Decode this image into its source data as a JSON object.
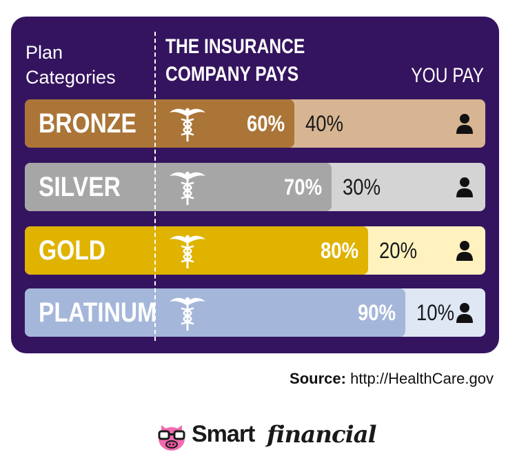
{
  "header": {
    "plan_line1": "Plan",
    "plan_line2": "Categories",
    "insurance_line1": "THE INSURANCE",
    "insurance_line2": "COMPANY PAYS",
    "you_pay": "YOU PAY"
  },
  "chart_data": {
    "type": "bar",
    "stacked": true,
    "orientation": "horizontal",
    "categories": [
      "BRONZE",
      "SILVER",
      "GOLD",
      "PLATINUM"
    ],
    "series": [
      {
        "name": "THE INSURANCE COMPANY PAYS",
        "values": [
          60,
          70,
          80,
          90
        ],
        "labels": [
          "60%",
          "70%",
          "80%",
          "90%"
        ]
      },
      {
        "name": "YOU PAY",
        "values": [
          40,
          30,
          20,
          10
        ],
        "labels": [
          "40%",
          "30%",
          "20%",
          "10%"
        ]
      }
    ],
    "unit": "%",
    "xlim": [
      0,
      100
    ],
    "colors": {
      "BRONZE": {
        "insurance": "#ab7537",
        "you": "#d7b593"
      },
      "SILVER": {
        "insurance": "#a6a6a6",
        "you": "#d4d4d4"
      },
      "GOLD": {
        "insurance": "#dfb300",
        "you": "#fff2bf"
      },
      "PLATINUM": {
        "insurance": "#a4b6d9",
        "you": "#dfe6f4"
      }
    },
    "icons": {
      "insurance": "caduceus-icon",
      "you": "person-icon"
    },
    "panel_color": "#34145f"
  },
  "source": {
    "label": "Source:",
    "text": "http://HealthCare.gov"
  },
  "logo": {
    "part1": "Smart",
    "part2": "financial",
    "icon": "pig-with-glasses-icon",
    "pig_color": "#f06bb0"
  }
}
